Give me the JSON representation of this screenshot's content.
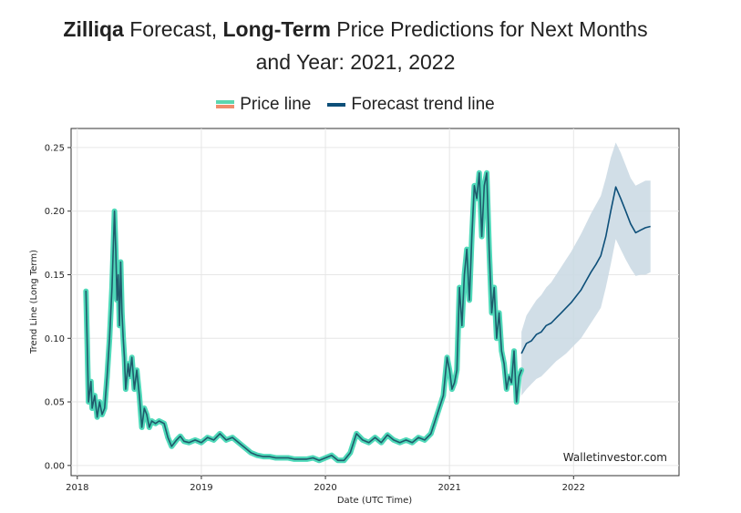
{
  "title": {
    "brand": "Zilliqa",
    "part1": " Forecast, ",
    "bold2": "Long-Term",
    "part2": " Price Predictions for Next Months",
    "line2": "and Year: 2021, 2022"
  },
  "legend": {
    "price_label": "Price line",
    "forecast_label": "Forecast trend line"
  },
  "watermark": "Walletinvestor.com",
  "colors": {
    "price_line": "#1f5a6b",
    "price_glow": "#4fd9b9",
    "forecast_line": "#0d4f79",
    "forecast_band": "#c9d8e3",
    "grid": "#e6e6e6"
  },
  "chart_data": {
    "type": "line",
    "xlabel": "Date (UTC Time)",
    "ylabel": "Trend Line (Long Term)",
    "xlim": [
      2017.95,
      2022.85
    ],
    "ylim": [
      -0.008,
      0.265
    ],
    "x_ticks": [
      {
        "value": 2018,
        "label": "2018"
      },
      {
        "value": 2019,
        "label": "2019"
      },
      {
        "value": 2020,
        "label": "2020"
      },
      {
        "value": 2021,
        "label": "2021"
      },
      {
        "value": 2022,
        "label": "2022"
      }
    ],
    "y_ticks": [
      {
        "value": 0.0,
        "label": "0.00"
      },
      {
        "value": 0.05,
        "label": "0.05"
      },
      {
        "value": 0.1,
        "label": "0.10"
      },
      {
        "value": 0.15,
        "label": "0.15"
      },
      {
        "value": 0.2,
        "label": "0.20"
      },
      {
        "value": 0.25,
        "label": "0.25"
      }
    ],
    "grid": true,
    "series": [
      {
        "name": "Price line",
        "x": [
          2018.07,
          2018.08,
          2018.09,
          2018.11,
          2018.12,
          2018.14,
          2018.16,
          2018.18,
          2018.2,
          2018.22,
          2018.24,
          2018.26,
          2018.28,
          2018.3,
          2018.31,
          2018.32,
          2018.33,
          2018.34,
          2018.35,
          2018.36,
          2018.37,
          2018.38,
          2018.39,
          2018.41,
          2018.42,
          2018.44,
          2018.46,
          2018.48,
          2018.5,
          2018.52,
          2018.54,
          2018.56,
          2018.58,
          2018.6,
          2018.63,
          2018.66,
          2018.7,
          2018.73,
          2018.76,
          2018.8,
          2018.83,
          2018.86,
          2018.9,
          2018.95,
          2019.0,
          2019.05,
          2019.1,
          2019.15,
          2019.2,
          2019.25,
          2019.3,
          2019.35,
          2019.4,
          2019.45,
          2019.5,
          2019.55,
          2019.6,
          2019.65,
          2019.7,
          2019.75,
          2019.8,
          2019.85,
          2019.9,
          2019.95,
          2020.0,
          2020.05,
          2020.1,
          2020.15,
          2020.2,
          2020.25,
          2020.3,
          2020.35,
          2020.4,
          2020.45,
          2020.5,
          2020.55,
          2020.6,
          2020.65,
          2020.7,
          2020.75,
          2020.8,
          2020.85,
          2020.9,
          2020.95,
          2020.98,
          2021.0,
          2021.02,
          2021.04,
          2021.06,
          2021.08,
          2021.1,
          2021.12,
          2021.14,
          2021.16,
          2021.18,
          2021.2,
          2021.22,
          2021.24,
          2021.26,
          2021.28,
          2021.3,
          2021.32,
          2021.34,
          2021.36,
          2021.38,
          2021.4,
          2021.42,
          2021.44,
          2021.46,
          2021.48,
          2021.5,
          2021.52,
          2021.54,
          2021.56,
          2021.58
        ],
        "values": [
          0.137,
          0.095,
          0.05,
          0.066,
          0.045,
          0.055,
          0.038,
          0.05,
          0.04,
          0.045,
          0.07,
          0.1,
          0.14,
          0.2,
          0.17,
          0.13,
          0.15,
          0.11,
          0.16,
          0.12,
          0.1,
          0.085,
          0.06,
          0.08,
          0.07,
          0.085,
          0.06,
          0.075,
          0.055,
          0.03,
          0.045,
          0.04,
          0.03,
          0.035,
          0.033,
          0.035,
          0.033,
          0.022,
          0.015,
          0.02,
          0.023,
          0.019,
          0.018,
          0.02,
          0.018,
          0.022,
          0.02,
          0.025,
          0.02,
          0.022,
          0.018,
          0.014,
          0.01,
          0.008,
          0.007,
          0.007,
          0.006,
          0.006,
          0.006,
          0.005,
          0.005,
          0.005,
          0.006,
          0.004,
          0.006,
          0.008,
          0.004,
          0.004,
          0.01,
          0.025,
          0.02,
          0.018,
          0.022,
          0.018,
          0.024,
          0.02,
          0.018,
          0.02,
          0.018,
          0.022,
          0.02,
          0.025,
          0.04,
          0.055,
          0.085,
          0.075,
          0.06,
          0.065,
          0.075,
          0.14,
          0.11,
          0.15,
          0.17,
          0.13,
          0.18,
          0.22,
          0.21,
          0.23,
          0.18,
          0.22,
          0.23,
          0.17,
          0.12,
          0.14,
          0.1,
          0.12,
          0.09,
          0.08,
          0.06,
          0.07,
          0.065,
          0.09,
          0.05,
          0.07,
          0.075
        ]
      },
      {
        "name": "Forecast trend line",
        "x": [
          2021.58,
          2021.62,
          2021.66,
          2021.7,
          2021.74,
          2021.78,
          2021.82,
          2021.86,
          2021.9,
          2021.94,
          2021.98,
          2022.02,
          2022.06,
          2022.1,
          2022.14,
          2022.18,
          2022.22,
          2022.26,
          2022.3,
          2022.34,
          2022.38,
          2022.42,
          2022.46,
          2022.5,
          2022.54,
          2022.58,
          2022.62
        ],
        "values": [
          0.088,
          0.096,
          0.098,
          0.103,
          0.105,
          0.11,
          0.112,
          0.116,
          0.12,
          0.124,
          0.128,
          0.133,
          0.138,
          0.145,
          0.152,
          0.158,
          0.165,
          0.18,
          0.2,
          0.219,
          0.21,
          0.2,
          0.19,
          0.183,
          0.185,
          0.187,
          0.188
        ],
        "upper": [
          0.105,
          0.118,
          0.124,
          0.13,
          0.134,
          0.14,
          0.144,
          0.15,
          0.156,
          0.162,
          0.168,
          0.175,
          0.182,
          0.19,
          0.198,
          0.205,
          0.212,
          0.226,
          0.242,
          0.254,
          0.246,
          0.236,
          0.226,
          0.22,
          0.222,
          0.224,
          0.224
        ],
        "lower": [
          0.055,
          0.06,
          0.064,
          0.068,
          0.07,
          0.074,
          0.078,
          0.082,
          0.085,
          0.088,
          0.092,
          0.096,
          0.1,
          0.106,
          0.112,
          0.118,
          0.124,
          0.14,
          0.158,
          0.178,
          0.17,
          0.162,
          0.155,
          0.149,
          0.15,
          0.15,
          0.152
        ]
      }
    ]
  }
}
